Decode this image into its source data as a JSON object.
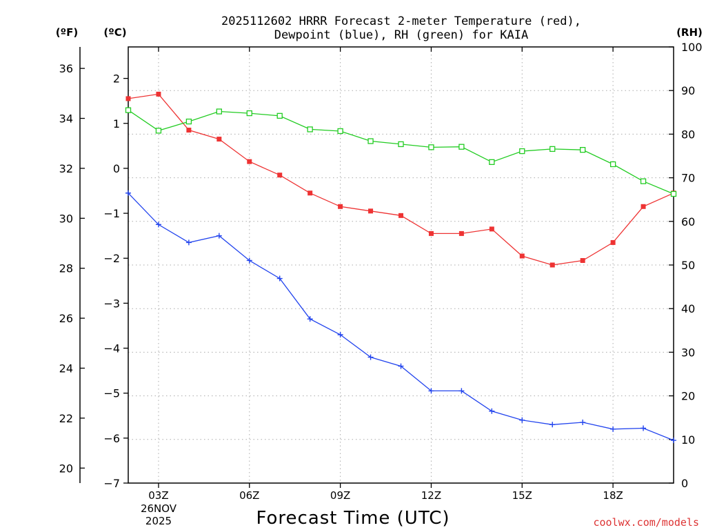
{
  "chart_data": {
    "type": "line",
    "title_line1": "2025112602 HRRR Forecast 2-meter Temperature (red),",
    "title_line2": "Dewpoint (blue), RH (green) for KAIA",
    "xlabel": "Forecast Time (UTC)",
    "watermark": "coolwx.com/models",
    "unit_f": "(ºF)",
    "unit_c": "(ºC)",
    "unit_rh": "(RH)",
    "date_label_day": "26NOV",
    "date_label_year": "2025",
    "x_hours": [
      2,
      3,
      4,
      5,
      6,
      7,
      8,
      9,
      10,
      11,
      12,
      13,
      14,
      15,
      16,
      17,
      18,
      19,
      20
    ],
    "x_range": [
      2,
      20
    ],
    "x_ticks": [
      {
        "hour": 3,
        "label": "03Z"
      },
      {
        "hour": 6,
        "label": "06Z"
      },
      {
        "hour": 9,
        "label": "09Z"
      },
      {
        "hour": 12,
        "label": "12Z"
      },
      {
        "hour": 15,
        "label": "15Z"
      },
      {
        "hour": 18,
        "label": "18Z"
      }
    ],
    "y_celsius_range": [
      -7,
      2.7
    ],
    "y_celsius_ticks": [
      {
        "v": 2,
        "label": "2"
      },
      {
        "v": 1,
        "label": "1"
      },
      {
        "v": 0,
        "label": "0"
      },
      {
        "v": -1,
        "label": "−1"
      },
      {
        "v": -2,
        "label": "−2"
      },
      {
        "v": -3,
        "label": "−3"
      },
      {
        "v": -4,
        "label": "−4"
      },
      {
        "v": -5,
        "label": "−5"
      },
      {
        "v": -6,
        "label": "−6"
      },
      {
        "v": -7,
        "label": "−7"
      }
    ],
    "y_fahrenheit_ticks": [
      {
        "v": 36,
        "label": "36"
      },
      {
        "v": 34,
        "label": "34"
      },
      {
        "v": 32,
        "label": "32"
      },
      {
        "v": 30,
        "label": "30"
      },
      {
        "v": 28,
        "label": "28"
      },
      {
        "v": 26,
        "label": "26"
      },
      {
        "v": 24,
        "label": "24"
      },
      {
        "v": 22,
        "label": "22"
      },
      {
        "v": 20,
        "label": "20"
      }
    ],
    "y_rh_range": [
      0,
      100
    ],
    "y_rh_ticks": [
      {
        "v": 100,
        "label": "100"
      },
      {
        "v": 90,
        "label": "90"
      },
      {
        "v": 80,
        "label": "80"
      },
      {
        "v": 70,
        "label": "70"
      },
      {
        "v": 60,
        "label": "60"
      },
      {
        "v": 50,
        "label": "50"
      },
      {
        "v": 40,
        "label": "40"
      },
      {
        "v": 30,
        "label": "30"
      },
      {
        "v": 20,
        "label": "20"
      },
      {
        "v": 10,
        "label": "10"
      },
      {
        "v": 0,
        "label": "0"
      }
    ],
    "series": [
      {
        "name": "Temperature",
        "axis": "celsius",
        "color": "#ee3333",
        "marker": "filled-square",
        "values": [
          1.55,
          1.65,
          0.85,
          0.65,
          0.15,
          -0.15,
          -0.55,
          -0.85,
          -0.95,
          -1.05,
          -1.45,
          -1.45,
          -1.35,
          -1.95,
          -2.15,
          -2.05,
          -1.65,
          -0.85,
          -0.55
        ]
      },
      {
        "name": "Dewpoint",
        "axis": "celsius",
        "color": "#2244ee",
        "marker": "plus",
        "values": [
          -0.55,
          -1.25,
          -1.65,
          -1.5,
          -2.05,
          -2.45,
          -3.35,
          -3.7,
          -4.2,
          -4.4,
          -4.95,
          -4.95,
          -5.4,
          -5.6,
          -5.7,
          -5.65,
          -5.8,
          -5.78,
          -6.05
        ]
      },
      {
        "name": "RH",
        "axis": "rh",
        "color": "#22cc22",
        "marker": "open-square",
        "values": [
          85.5,
          80.8,
          82.9,
          85.2,
          84.8,
          84.2,
          81.1,
          80.7,
          78.4,
          77.7,
          77.0,
          77.1,
          73.6,
          76.1,
          76.6,
          76.4,
          73.1,
          69.2,
          66.3
        ]
      }
    ]
  }
}
